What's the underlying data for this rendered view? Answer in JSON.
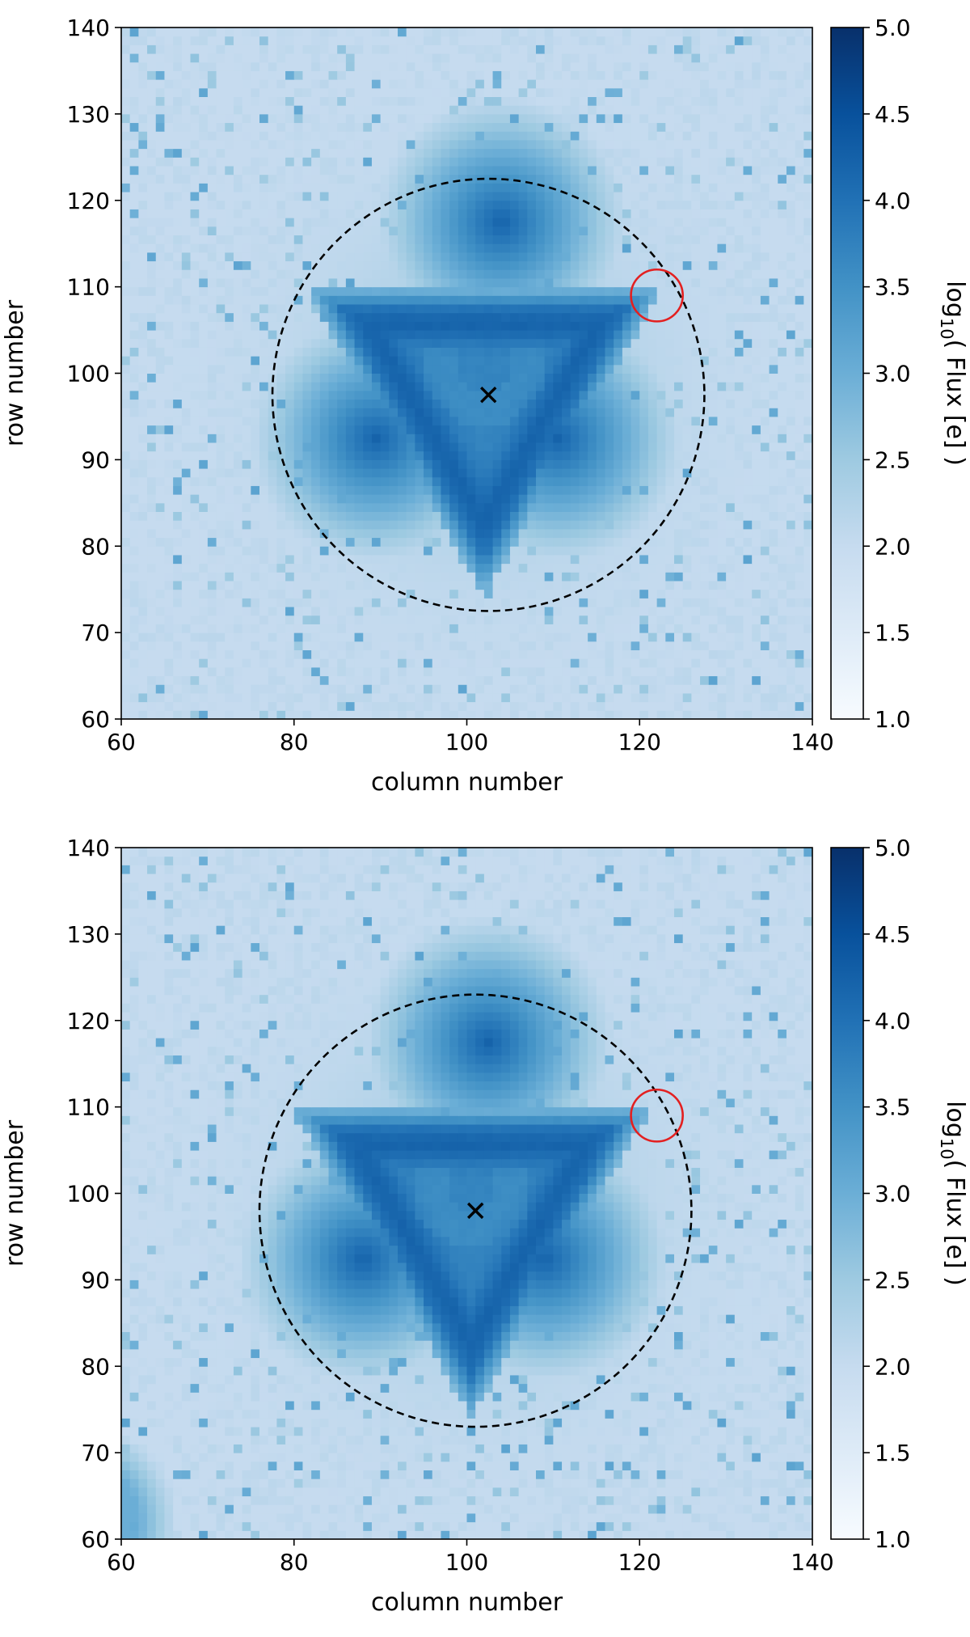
{
  "chart_data": [
    {
      "type": "heatmap",
      "panel": "top",
      "xlabel": "column number",
      "ylabel": "row number",
      "xlim": [
        60,
        140
      ],
      "ylim": [
        60,
        140
      ],
      "xticks": [
        60,
        80,
        100,
        120,
        140
      ],
      "yticks": [
        60,
        70,
        80,
        90,
        100,
        110,
        120,
        130,
        140
      ],
      "colorbar": {
        "label": "log10( Flux [e] )",
        "label_prefix": "log",
        "label_sub": "10",
        "label_suffix": "( Flux [e] )",
        "range": [
          1.0,
          5.0
        ],
        "ticks": [
          "1.0",
          "1.5",
          "2.0",
          "2.5",
          "3.0",
          "3.5",
          "4.0",
          "4.5",
          "5.0"
        ],
        "colormap": "Blues"
      },
      "background_log_flux": 2.0,
      "source": {
        "shape": "triangular PSF",
        "center": [
          102,
          98
        ],
        "peak_log_flux": 4.2
      },
      "aperture_circle": {
        "center": [
          102.5,
          97.5
        ],
        "radius": 25,
        "style": "dashed",
        "color": "#000000"
      },
      "centroid_marker": {
        "x": 102.5,
        "y": 97.5,
        "marker": "x"
      },
      "target_circle": {
        "center": [
          122,
          109
        ],
        "radius": 3,
        "color": "#e32020"
      }
    },
    {
      "type": "heatmap",
      "panel": "bottom",
      "xlabel": "column number",
      "ylabel": "row number",
      "xlim": [
        60,
        140
      ],
      "ylim": [
        60,
        140
      ],
      "xticks": [
        60,
        80,
        100,
        120,
        140
      ],
      "yticks": [
        60,
        70,
        80,
        90,
        100,
        110,
        120,
        130,
        140
      ],
      "colorbar": {
        "label": "log10( Flux [e] )",
        "label_prefix": "log",
        "label_sub": "10",
        "label_suffix": "( Flux [e] )",
        "range": [
          1.0,
          5.0
        ],
        "ticks": [
          "1.0",
          "1.5",
          "2.0",
          "2.5",
          "3.0",
          "3.5",
          "4.0",
          "4.5",
          "5.0"
        ],
        "colormap": "Blues"
      },
      "background_log_flux": 2.0,
      "source": {
        "shape": "triangular PSF",
        "center": [
          100.5,
          98
        ],
        "peak_log_flux": 4.2
      },
      "aperture_circle": {
        "center": [
          101,
          98
        ],
        "radius": 25,
        "style": "dashed",
        "color": "#000000"
      },
      "centroid_marker": {
        "x": 101,
        "y": 98,
        "marker": "x"
      },
      "target_circle": {
        "center": [
          122,
          109
        ],
        "radius": 3,
        "color": "#e32020"
      },
      "corner_source": {
        "center": [
          55,
          62
        ],
        "peak_log_flux": 3.0
      }
    }
  ]
}
